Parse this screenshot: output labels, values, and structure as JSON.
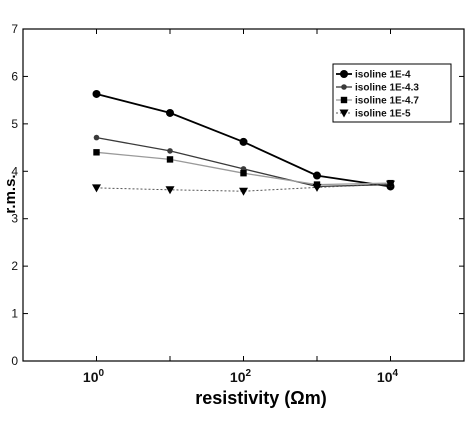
{
  "chart_data": {
    "type": "line",
    "xscale": "log",
    "xlim": [
      0.1,
      100000
    ],
    "ylim": [
      0,
      7
    ],
    "xlabel": "resistivity (Ωm)",
    "ylabel": "r.m.s.",
    "x": [
      1,
      10,
      100,
      1000,
      10000
    ],
    "xticks": [
      {
        "value": 1,
        "base": "10",
        "exp": "0"
      },
      {
        "value": 100,
        "base": "10",
        "exp": "2"
      },
      {
        "value": 10000,
        "base": "10",
        "exp": "4"
      }
    ],
    "yticks": [
      "0",
      "1",
      "2",
      "3",
      "4",
      "5",
      "6",
      "7"
    ],
    "grid": false,
    "legend": "top-right",
    "series": [
      {
        "name": "isoline 1E-4",
        "values": [
          5.63,
          5.23,
          4.62,
          3.91,
          3.68
        ],
        "marker": "circle",
        "color": "#000000",
        "line_width": 1.8
      },
      {
        "name": "isoline 1E-4.3",
        "values": [
          4.71,
          4.43,
          4.05,
          3.68,
          3.72
        ],
        "marker": "dot",
        "color": "#3a3a3a",
        "line_width": 1.3
      },
      {
        "name": "isoline 1E-4.7",
        "values": [
          4.4,
          4.25,
          3.96,
          3.72,
          3.75
        ],
        "marker": "square",
        "color": "#9a9a9a",
        "line_width": 1.3
      },
      {
        "name": "isoline 1E-5",
        "values": [
          3.65,
          3.61,
          3.58,
          3.66,
          3.73
        ],
        "marker": "triangle-down",
        "color": "#555555",
        "line_width": 1,
        "dash": "2,2"
      }
    ]
  }
}
